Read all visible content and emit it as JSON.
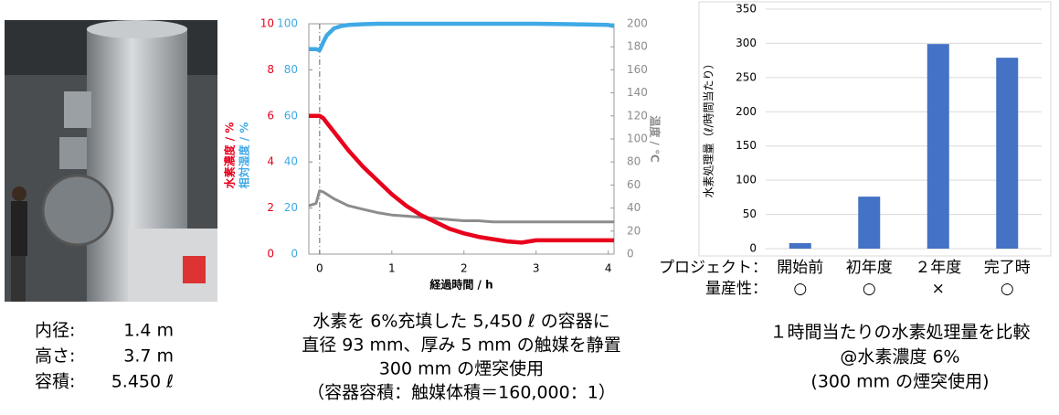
{
  "specs": {
    "rows": [
      [
        "内径:",
        "1.4 m"
      ],
      [
        "高さ:",
        "3.7 m"
      ],
      [
        "容積:",
        "5.450 ℓ"
      ]
    ]
  },
  "chart_data": [
    {
      "type": "line",
      "x_label": "経過時間 / h",
      "y_label": "水素濃度 / %",
      "y2_label": "相対湿度 / %",
      "y3_label": "温度 / ℃",
      "xlim": [
        -0.15,
        4.08
      ],
      "xticks": [
        0,
        1,
        2,
        3,
        4
      ],
      "ylim": [
        0,
        10
      ],
      "yticks": [
        0,
        2,
        4,
        6,
        8,
        10
      ],
      "y2lim": [
        0,
        100
      ],
      "y2ticks": [
        0,
        20,
        40,
        60,
        80,
        100
      ],
      "y3lim": [
        0,
        200
      ],
      "y3ticks": [
        0,
        20,
        40,
        60,
        80,
        100,
        120,
        140,
        160,
        180,
        200
      ],
      "x": [
        -0.15,
        -0.05,
        0,
        0.05,
        0.1,
        0.2,
        0.3,
        0.4,
        0.6,
        0.8,
        1.0,
        1.2,
        1.4,
        1.6,
        1.8,
        2.0,
        2.2,
        2.4,
        2.6,
        2.8,
        3.0,
        3.5,
        4.0,
        4.08
      ],
      "series": [
        {
          "name": "水素濃度",
          "color": "#e8001c",
          "axis": "y",
          "values": [
            6.0,
            6.0,
            6.0,
            5.9,
            5.7,
            5.3,
            4.9,
            4.5,
            3.8,
            3.2,
            2.6,
            2.1,
            1.7,
            1.4,
            1.1,
            0.9,
            0.75,
            0.65,
            0.55,
            0.5,
            0.6,
            0.6,
            0.6,
            0.6
          ]
        },
        {
          "name": "相対湿度",
          "color": "#3fa9e6",
          "axis": "y2",
          "values": [
            89,
            89,
            88.5,
            92,
            95,
            98,
            99,
            99.5,
            99.8,
            100,
            100,
            100,
            100,
            100,
            100,
            100,
            100,
            100,
            100,
            100,
            100,
            99.8,
            99.5,
            99
          ]
        },
        {
          "name": "温度",
          "color": "#8c8c8c",
          "axis": "y3",
          "values": [
            42,
            44,
            55,
            54,
            52,
            48,
            45,
            42,
            39,
            36,
            34,
            33,
            32,
            31,
            30,
            29,
            29,
            28,
            28,
            28,
            28,
            28,
            28,
            28
          ]
        }
      ],
      "grid": false
    },
    {
      "type": "bar",
      "y_label": "水素処理量（ℓ/時間当たり）",
      "x_label": "プロジェクト：",
      "categories": [
        "開始前",
        "初年度",
        "２年度",
        "完了時"
      ],
      "values": [
        8,
        76,
        299,
        279
      ],
      "color": "#4472c4",
      "ylim": [
        0,
        350
      ],
      "yticks": [
        0,
        50,
        100,
        150,
        200,
        250,
        300,
        350
      ],
      "grid": true,
      "mass_production": {
        "label": "量産性：",
        "marks": [
          "○",
          "○",
          "×",
          "○"
        ]
      }
    }
  ],
  "captions": {
    "line": [
      "水素を 6%充填した 5,450 ℓ の容器に",
      "直径 93 mm、厚み 5 mm の触媒を静置",
      "300 mm の煙突使用",
      "（容器容積：触媒体積＝160,000：1）"
    ],
    "bar": [
      "１時間当たりの水素処理量を比較",
      "@水素濃度 6%",
      "(300 mm の煙突使用)"
    ]
  }
}
